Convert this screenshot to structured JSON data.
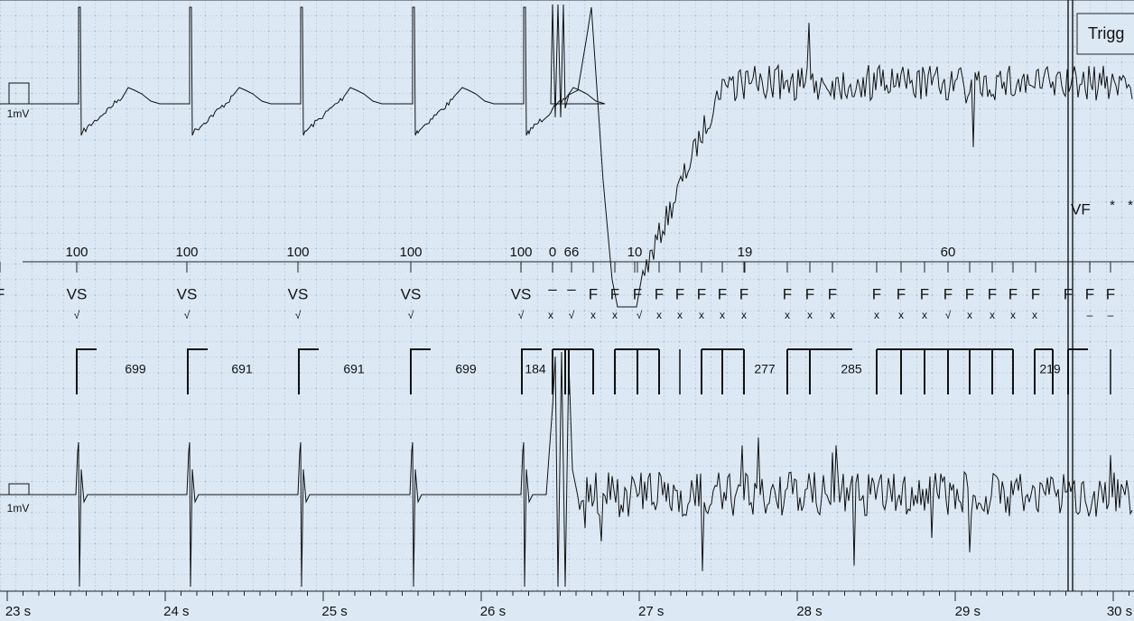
{
  "header": {
    "trigger": "Trigg"
  },
  "channels": [
    {
      "scale": "1mV"
    },
    {
      "scale": "1mV"
    }
  ],
  "episode": {
    "label": "VF",
    "marks": [
      "*",
      "*"
    ]
  },
  "rates": [
    "100",
    "100",
    "100",
    "100",
    "100",
    "0",
    "66",
    "10",
    "19",
    "60"
  ],
  "markers": [
    "VS",
    "VS",
    "VS",
    "VS",
    "VS",
    "–",
    "–",
    "F",
    "F",
    "F",
    "F",
    "F",
    "F",
    "F",
    "F",
    "F",
    "F",
    "F",
    "F",
    "F",
    "F",
    "F",
    "F",
    "F",
    "F",
    "F",
    "F",
    "F",
    "F",
    "F"
  ],
  "sub_markers": [
    "√",
    "√",
    "√",
    "√",
    "√",
    "x",
    "√",
    "x",
    "x",
    "√",
    "x",
    "x",
    "x",
    "x",
    "x",
    "x",
    "x",
    "x",
    "x",
    "x",
    "x",
    "√",
    "x",
    "x",
    "x",
    "x",
    "–",
    "–"
  ],
  "intervals": [
    "699",
    "691",
    "691",
    "699",
    "184",
    "277",
    "285",
    "219"
  ],
  "time_axis": [
    "23 s",
    "24 s",
    "25 s",
    "26 s",
    "27 s",
    "28 s",
    "29 s",
    "30 s"
  ]
}
